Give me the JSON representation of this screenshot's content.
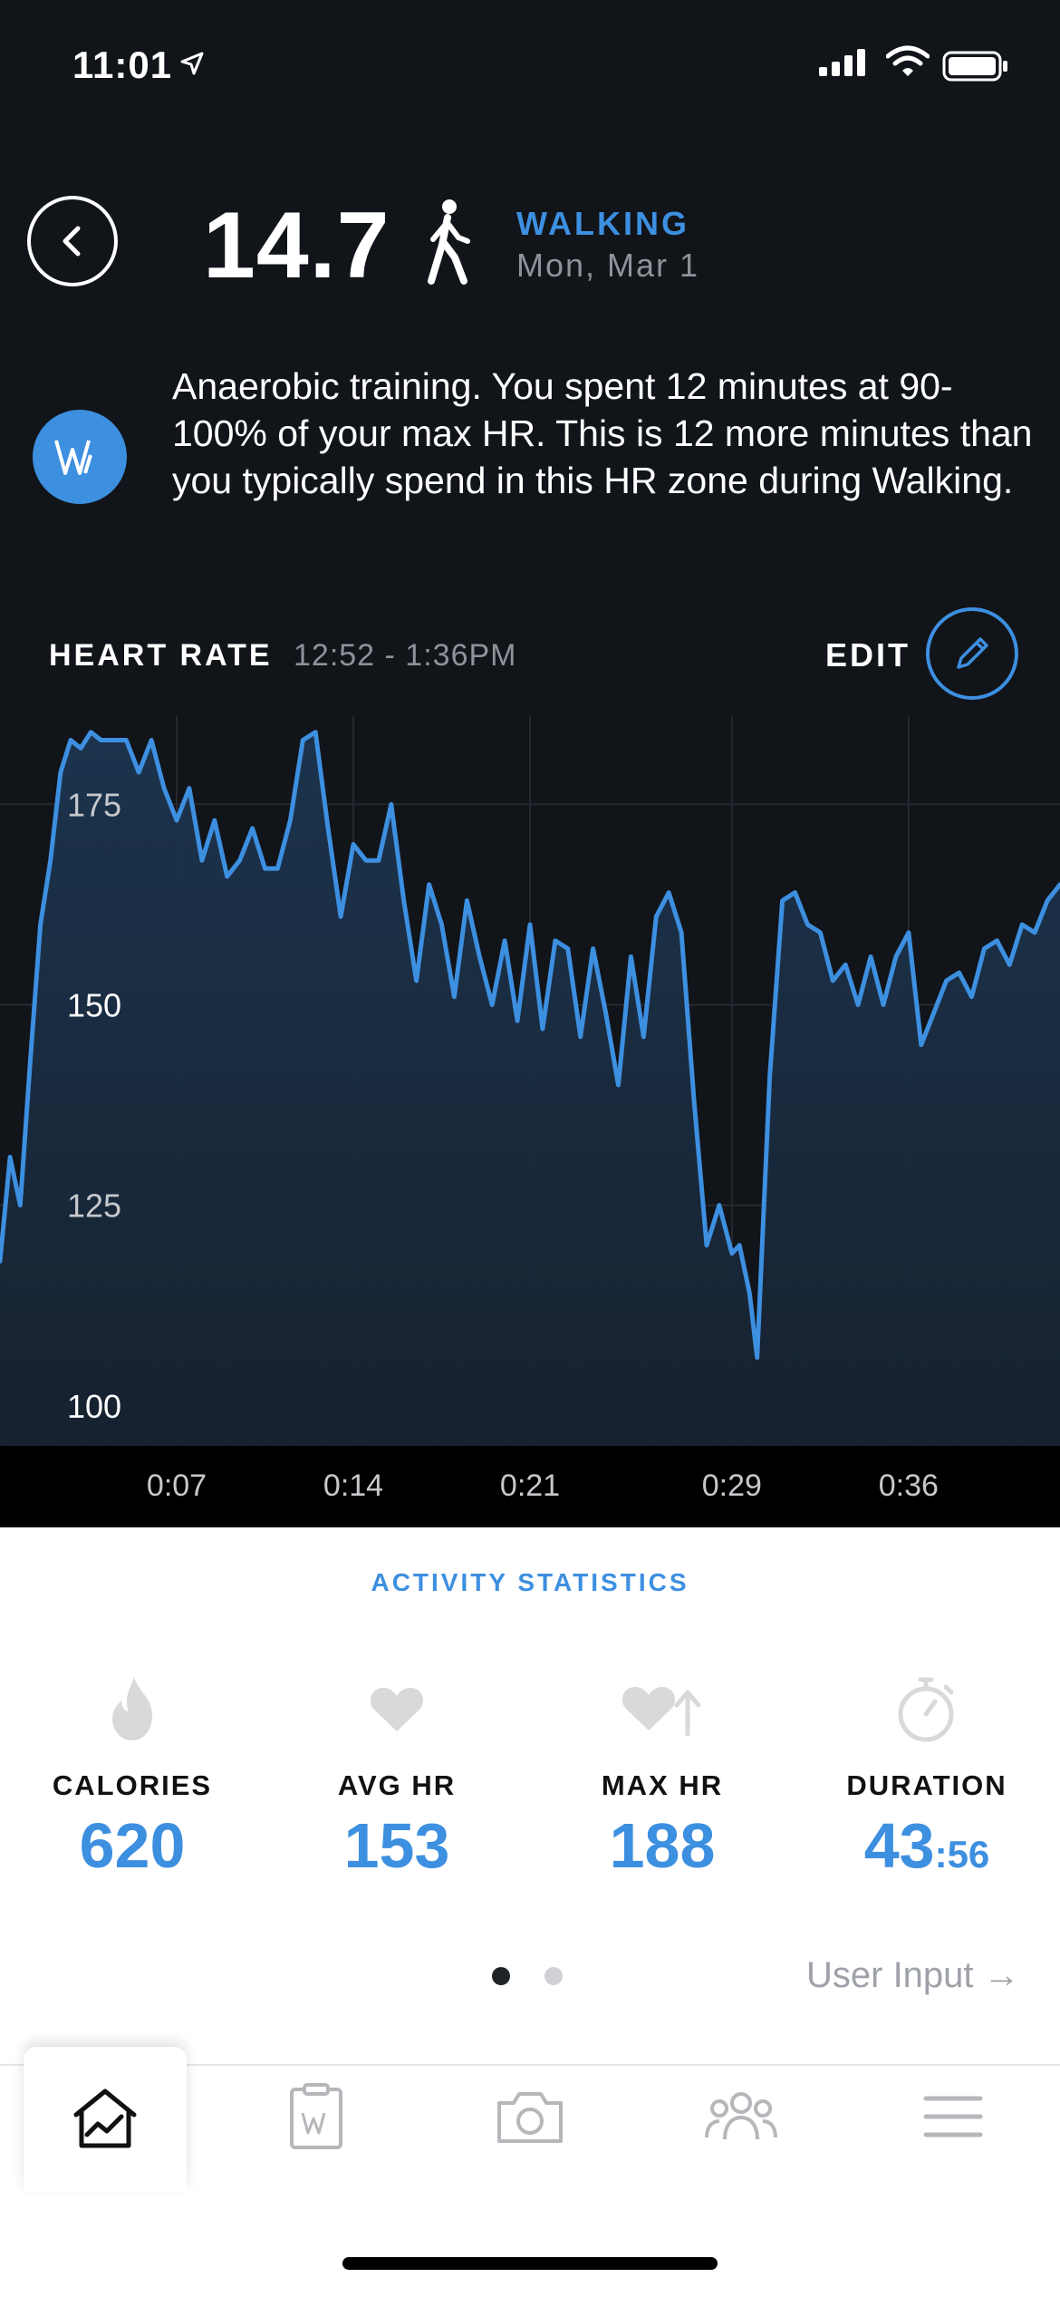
{
  "status_bar": {
    "time": "11:01"
  },
  "header": {
    "strain_value": "14.7",
    "activity_name": "WALKING",
    "activity_date": "Mon, Mar 1",
    "icons": {
      "back": "chevron-left-icon",
      "activity": "walking-person-icon"
    }
  },
  "insight": {
    "icon": "whoop-logo-icon",
    "text": "Anaerobic training. You spent 12 minutes at 90-100% of your max HR. This is 12 more minutes than you typically spend in this HR zone during Walking."
  },
  "heart_rate_section": {
    "title": "HEART RATE",
    "time_range": "12:52 - 1:36PM",
    "edit_label": "EDIT",
    "edit_icon": "pencil-icon"
  },
  "chart_data": {
    "type": "area",
    "title": "HEART RATE",
    "xlabel": "",
    "ylabel": "",
    "y_tick_labels": [
      "175",
      "150",
      "125",
      "100"
    ],
    "x_tick_labels": [
      "0:07",
      "0:14",
      "0:21",
      "0:29",
      "0:36"
    ],
    "ylim": [
      95,
      186
    ],
    "xlim": [
      0,
      42
    ],
    "grid": true,
    "line_color": "#3d8fe0",
    "series": [
      {
        "x": [
          0,
          0.4,
          0.8,
          1.2,
          1.6,
          2.0,
          2.4,
          2.8,
          3.2,
          3.6,
          4.0,
          4.5,
          5.0,
          5.5,
          6.0,
          6.5,
          7.0,
          7.5,
          8.0,
          8.5,
          9.0,
          9.5,
          10.0,
          10.5,
          11.0,
          11.5,
          12.0,
          12.5,
          13.0,
          13.5,
          14.0,
          14.5,
          15.0,
          15.5,
          16.0,
          16.5,
          17.0,
          17.5,
          18.0,
          18.5,
          19.0,
          19.5,
          20.0,
          20.5,
          21.0,
          21.5,
          22.0,
          22.5,
          23.0,
          23.5,
          24.0,
          24.5,
          25.0,
          25.5,
          26.0,
          26.5,
          27.0,
          27.5,
          28.0,
          28.5,
          29.0,
          29.3,
          29.7,
          30.0,
          30.5,
          31.0,
          31.5,
          32.0,
          32.5,
          33.0,
          33.5,
          34.0,
          34.5,
          35.0,
          35.5,
          36.0,
          36.5,
          37.0,
          37.5,
          38.0,
          38.5,
          39.0,
          39.5,
          40.0,
          40.5,
          41.0,
          41.5,
          42.0
        ],
        "values": [
          118,
          131,
          125,
          143,
          160,
          168,
          179,
          183,
          182,
          184,
          183,
          183,
          183,
          179,
          183,
          177,
          173,
          177,
          168,
          173,
          166,
          168,
          172,
          167,
          167,
          173,
          183,
          184,
          172,
          161,
          170,
          168,
          168,
          175,
          163,
          153,
          165,
          160,
          151,
          163,
          156,
          150,
          158,
          148,
          160,
          147,
          158,
          157,
          146,
          157,
          149,
          140,
          156,
          146,
          161,
          164,
          159,
          138,
          120,
          125,
          119,
          120,
          114,
          106,
          141,
          163,
          164,
          160,
          159,
          153,
          155,
          150,
          156,
          150,
          156,
          159,
          145,
          149,
          153,
          154,
          151,
          157,
          158,
          155,
          160,
          159,
          163,
          165
        ]
      }
    ]
  },
  "stats": {
    "title": "ACTIVITY STATISTICS",
    "items": [
      {
        "label": "CALORIES",
        "value": "620",
        "icon": "flame-icon"
      },
      {
        "label": "AVG HR",
        "value": "153",
        "icon": "heart-icon"
      },
      {
        "label": "MAX HR",
        "value": "188",
        "icon": "heart-arrow-up-icon"
      },
      {
        "label": "DURATION",
        "value_main": "43",
        "value_sub": ":56",
        "icon": "stopwatch-icon"
      }
    ],
    "pager": {
      "count": 2,
      "active": 0
    },
    "user_input_label": "User Input",
    "user_input_arrow": "→"
  },
  "tab_bar": {
    "tabs": [
      {
        "icon": "home-chart-icon",
        "active": true
      },
      {
        "icon": "journal-icon",
        "active": false
      },
      {
        "icon": "camera-icon",
        "active": false
      },
      {
        "icon": "community-icon",
        "active": false
      },
      {
        "icon": "menu-icon",
        "active": false
      }
    ]
  },
  "colors": {
    "accent": "#3d8fe0",
    "background_dark": "#111419"
  }
}
